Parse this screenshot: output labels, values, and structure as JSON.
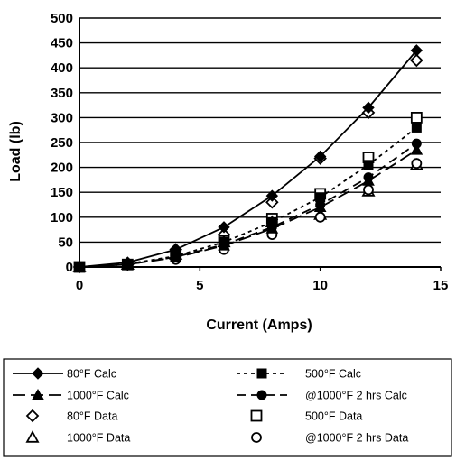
{
  "chart_data": {
    "type": "scatter",
    "xlabel": "Current (Amps)",
    "ylabel": "Load (lb)",
    "xlim": [
      0,
      15
    ],
    "ylim": [
      0,
      500
    ],
    "x_ticks": [
      "0",
      "5",
      "10",
      "15"
    ],
    "y_ticks": [
      "0",
      "50",
      "100",
      "150",
      "200",
      "250",
      "300",
      "350",
      "400",
      "450",
      "500"
    ],
    "grid": "horizontal",
    "legend_position": "bottom",
    "series": [
      {
        "name": "80°F Calc",
        "style": "solid",
        "marker": "filled-diamond",
        "x": [
          0,
          2,
          4,
          6,
          8,
          10,
          12,
          14
        ],
        "y": [
          0,
          9,
          35,
          80,
          143,
          222,
          320,
          435
        ]
      },
      {
        "name": "500°F Calc",
        "style": "dotted",
        "marker": "filled-square",
        "x": [
          0,
          2,
          4,
          6,
          8,
          10,
          12,
          14
        ],
        "y": [
          0,
          6,
          22,
          50,
          90,
          140,
          205,
          280
        ]
      },
      {
        "name": "1000°F Calc",
        "style": "long-dash",
        "marker": "filled-triangle",
        "x": [
          0,
          2,
          4,
          6,
          8,
          10,
          12,
          14
        ],
        "y": [
          0,
          5,
          19,
          43,
          77,
          120,
          173,
          235
        ]
      },
      {
        "name": "@1000°F 2 hrs Calc",
        "style": "dash",
        "marker": "filled-circle",
        "x": [
          0,
          2,
          4,
          6,
          8,
          10,
          12,
          14
        ],
        "y": [
          0,
          5,
          20,
          45,
          80,
          125,
          180,
          248
        ]
      },
      {
        "name": "80°F Data",
        "style": "none",
        "marker": "open-diamond",
        "x": [
          0,
          2,
          4,
          6,
          8,
          10,
          12,
          14
        ],
        "y": [
          0,
          5,
          35,
          65,
          130,
          218,
          310,
          415
        ]
      },
      {
        "name": "500°F Data",
        "style": "none",
        "marker": "open-square",
        "x": [
          0,
          2,
          4,
          6,
          8,
          10,
          12,
          14
        ],
        "y": [
          0,
          5,
          25,
          52,
          97,
          147,
          220,
          300
        ]
      },
      {
        "name": "1000°F Data",
        "style": "none",
        "marker": "open-triangle",
        "x": [
          0,
          2,
          4,
          6,
          8,
          10,
          12,
          14
        ],
        "y": [
          0,
          5,
          25,
          50,
          90,
          105,
          152,
          205
        ]
      },
      {
        "name": "@1000°F 2 hrs Data",
        "style": "none",
        "marker": "open-circle",
        "x": [
          0,
          2,
          4,
          6,
          8,
          10,
          12,
          14
        ],
        "y": [
          0,
          5,
          15,
          35,
          65,
          100,
          155,
          208
        ]
      }
    ]
  }
}
